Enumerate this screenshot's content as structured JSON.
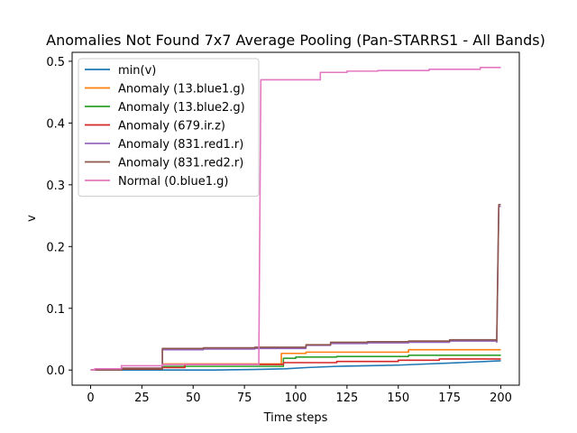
{
  "chart_data": {
    "type": "line",
    "title": "Anomalies Not Found 7x7 Average Pooling (Pan-STARRS1 - All Bands)",
    "xlabel": "Time steps",
    "ylabel": "v",
    "xlim": [
      -9,
      209
    ],
    "ylim": [
      -0.0245,
      0.5145
    ],
    "xticks": [
      0,
      25,
      50,
      75,
      100,
      125,
      150,
      175,
      200
    ],
    "yticks": [
      0.0,
      0.1,
      0.2,
      0.3,
      0.4,
      0.5
    ],
    "xtick_labels": [
      "0",
      "25",
      "50",
      "75",
      "100",
      "125",
      "150",
      "175",
      "200"
    ],
    "ytick_labels": [
      "0.0",
      "0.1",
      "0.2",
      "0.3",
      "0.4",
      "0.5"
    ],
    "grid": false,
    "legend_position": "top-left",
    "series": [
      {
        "name": "min(v)",
        "color": "#1f77b4",
        "points": [
          [
            0,
            0.0
          ],
          [
            40,
            0.0
          ],
          [
            60,
            0.0
          ],
          [
            80,
            0.001
          ],
          [
            95,
            0.002
          ],
          [
            105,
            0.004
          ],
          [
            120,
            0.006
          ],
          [
            135,
            0.007
          ],
          [
            150,
            0.008
          ],
          [
            165,
            0.01
          ],
          [
            180,
            0.012
          ],
          [
            200,
            0.015
          ]
        ]
      },
      {
        "name": "Anomaly (13.blue1.g)",
        "color": "#ff7f0e",
        "points": [
          [
            0,
            0.0
          ],
          [
            15,
            0.0
          ],
          [
            15,
            0.002
          ],
          [
            35,
            0.002
          ],
          [
            35,
            0.01
          ],
          [
            93,
            0.01
          ],
          [
            93,
            0.027
          ],
          [
            105,
            0.027
          ],
          [
            105,
            0.029
          ],
          [
            155,
            0.029
          ],
          [
            155,
            0.033
          ],
          [
            200,
            0.033
          ]
        ]
      },
      {
        "name": "Anomaly (13.blue2.g)",
        "color": "#2ca02c",
        "points": [
          [
            0,
            0.0
          ],
          [
            15,
            0.0
          ],
          [
            15,
            0.002
          ],
          [
            35,
            0.002
          ],
          [
            35,
            0.006
          ],
          [
            94,
            0.006
          ],
          [
            94,
            0.019
          ],
          [
            100,
            0.019
          ],
          [
            100,
            0.021
          ],
          [
            120,
            0.021
          ],
          [
            120,
            0.022
          ],
          [
            155,
            0.022
          ],
          [
            155,
            0.024
          ],
          [
            200,
            0.024
          ]
        ]
      },
      {
        "name": "Anomaly (679.ir.z)",
        "color": "#d62728",
        "points": [
          [
            0,
            0.0
          ],
          [
            15,
            0.0
          ],
          [
            15,
            0.002
          ],
          [
            35,
            0.002
          ],
          [
            35,
            0.004
          ],
          [
            46,
            0.004
          ],
          [
            46,
            0.009
          ],
          [
            94,
            0.009
          ],
          [
            94,
            0.012
          ],
          [
            120,
            0.012
          ],
          [
            120,
            0.014
          ],
          [
            150,
            0.014
          ],
          [
            150,
            0.016
          ],
          [
            170,
            0.016
          ],
          [
            170,
            0.018
          ],
          [
            200,
            0.018
          ]
        ]
      },
      {
        "name": "Anomaly (831.red1.r)",
        "color": "#9467bd",
        "points": [
          [
            0,
            0.0
          ],
          [
            15,
            0.0
          ],
          [
            15,
            0.003
          ],
          [
            35,
            0.003
          ],
          [
            35,
            0.033
          ],
          [
            55,
            0.033
          ],
          [
            55,
            0.034
          ],
          [
            80,
            0.034
          ],
          [
            80,
            0.035
          ],
          [
            105,
            0.035
          ],
          [
            105,
            0.04
          ],
          [
            117,
            0.04
          ],
          [
            117,
            0.043
          ],
          [
            135,
            0.043
          ],
          [
            135,
            0.044
          ],
          [
            155,
            0.044
          ],
          [
            155,
            0.045
          ],
          [
            175,
            0.045
          ],
          [
            175,
            0.047
          ],
          [
            198,
            0.047
          ],
          [
            198,
            0.045
          ],
          [
            199,
            0.265
          ],
          [
            200,
            0.265
          ]
        ]
      },
      {
        "name": "Anomaly (831.red2.r)",
        "color": "#8c564b",
        "points": [
          [
            0,
            0.0
          ],
          [
            15,
            0.0
          ],
          [
            15,
            0.003
          ],
          [
            35,
            0.003
          ],
          [
            35,
            0.035
          ],
          [
            55,
            0.035
          ],
          [
            55,
            0.036
          ],
          [
            80,
            0.036
          ],
          [
            80,
            0.037
          ],
          [
            105,
            0.037
          ],
          [
            105,
            0.041
          ],
          [
            117,
            0.041
          ],
          [
            117,
            0.045
          ],
          [
            135,
            0.045
          ],
          [
            135,
            0.046
          ],
          [
            155,
            0.046
          ],
          [
            155,
            0.047
          ],
          [
            175,
            0.047
          ],
          [
            175,
            0.049
          ],
          [
            198,
            0.049
          ],
          [
            198,
            0.047
          ],
          [
            199,
            0.268
          ],
          [
            200,
            0.268
          ]
        ]
      },
      {
        "name": "Normal (0.blue1.g)",
        "color": "#e377c2",
        "points": [
          [
            0,
            0.0
          ],
          [
            2,
            0.0
          ],
          [
            2,
            0.002
          ],
          [
            15,
            0.002
          ],
          [
            15,
            0.007
          ],
          [
            35,
            0.007
          ],
          [
            35,
            0.009
          ],
          [
            82,
            0.009
          ],
          [
            83,
            0.47
          ],
          [
            112,
            0.47
          ],
          [
            112,
            0.482
          ],
          [
            125,
            0.482
          ],
          [
            125,
            0.484
          ],
          [
            140,
            0.484
          ],
          [
            140,
            0.485
          ],
          [
            165,
            0.485
          ],
          [
            165,
            0.487
          ],
          [
            190,
            0.487
          ],
          [
            190,
            0.49
          ],
          [
            200,
            0.49
          ]
        ]
      }
    ]
  }
}
